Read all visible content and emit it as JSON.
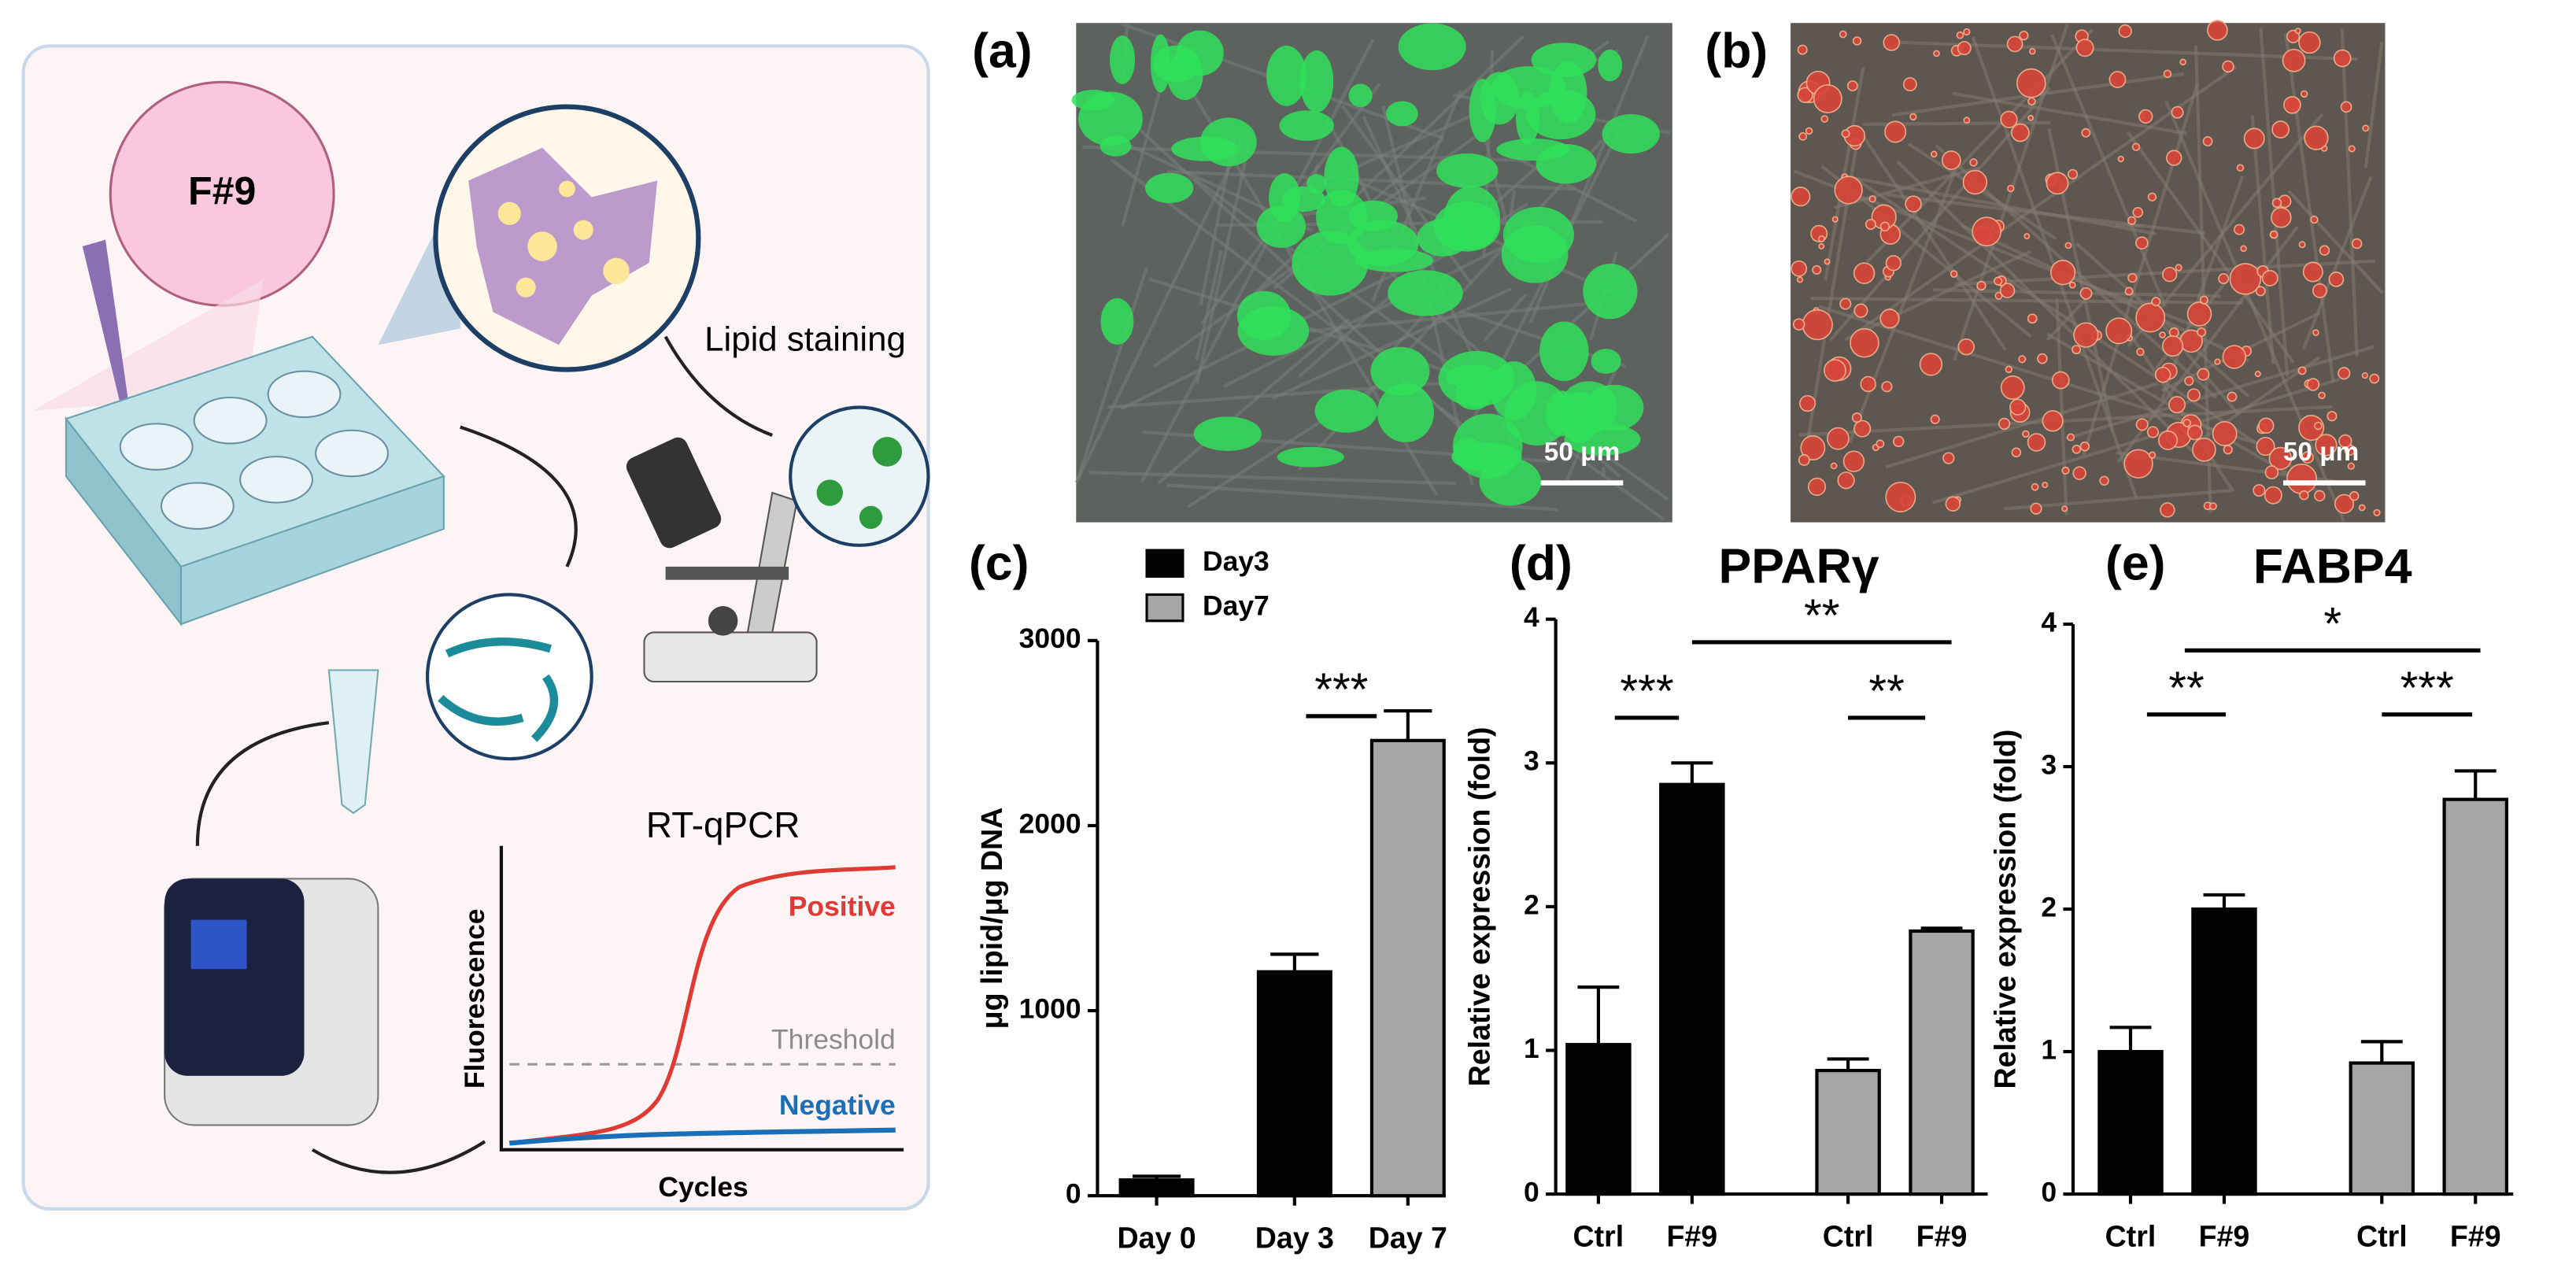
{
  "schematic": {
    "sample": "F#9",
    "lipid_staining": "Lipid staining",
    "rt_qpcr": "RT-qPCR",
    "y_axis": "Fluorescence",
    "x_axis": "Cycles",
    "positive": "Positive",
    "threshold": "Threshold",
    "negative": "Negative"
  },
  "images": [
    {
      "panel": "(a)",
      "scale_bar": "50 μm"
    },
    {
      "panel": "(b)",
      "scale_bar": "50 μm"
    }
  ],
  "chart_data": [
    {
      "type": "bar",
      "panel": "(c)",
      "ylabel": "μg lipid/μg DNA",
      "categories": [
        "Day 0",
        "Day 3",
        "Day 7"
      ],
      "values": [
        85,
        1210,
        2460
      ],
      "errors": [
        20,
        95,
        160
      ],
      "colors": [
        "#000000",
        "#000000",
        "#a6a6a6"
      ],
      "legend": [
        {
          "name": "Day3",
          "color": "#000000"
        },
        {
          "name": "Day7",
          "color": "#a6a6a6"
        }
      ],
      "ylim": [
        0,
        3000
      ],
      "yticks": [
        0,
        1000,
        2000,
        3000
      ],
      "annotations": [
        "***"
      ]
    },
    {
      "type": "bar",
      "panel": "(d)",
      "title": "PPARγ",
      "ylabel": "Relative expression (fold)",
      "categories": [
        "Ctrl",
        "F#9",
        "Ctrl",
        "F#9"
      ],
      "values": [
        1.04,
        2.85,
        0.86,
        1.83
      ],
      "errors": [
        0.4,
        0.15,
        0.08,
        0.02
      ],
      "colors": [
        "#000000",
        "#000000",
        "#a6a6a6",
        "#a6a6a6"
      ],
      "ylim": [
        0,
        4
      ],
      "yticks": [
        0,
        1,
        2,
        3,
        4
      ],
      "annotations": [
        "***",
        "**",
        "**"
      ]
    },
    {
      "type": "bar",
      "panel": "(e)",
      "title": "FABP4",
      "ylabel": "Relative expression (fold)",
      "categories": [
        "Ctrl",
        "F#9",
        "Ctrl",
        "F#9"
      ],
      "values": [
        1.0,
        2.0,
        0.92,
        2.77
      ],
      "errors": [
        0.17,
        0.1,
        0.15,
        0.2
      ],
      "colors": [
        "#000000",
        "#000000",
        "#a6a6a6",
        "#a6a6a6"
      ],
      "ylim": [
        0,
        4
      ],
      "yticks": [
        0,
        1,
        2,
        3,
        4
      ],
      "annotations": [
        "**",
        "***",
        "*"
      ]
    }
  ]
}
